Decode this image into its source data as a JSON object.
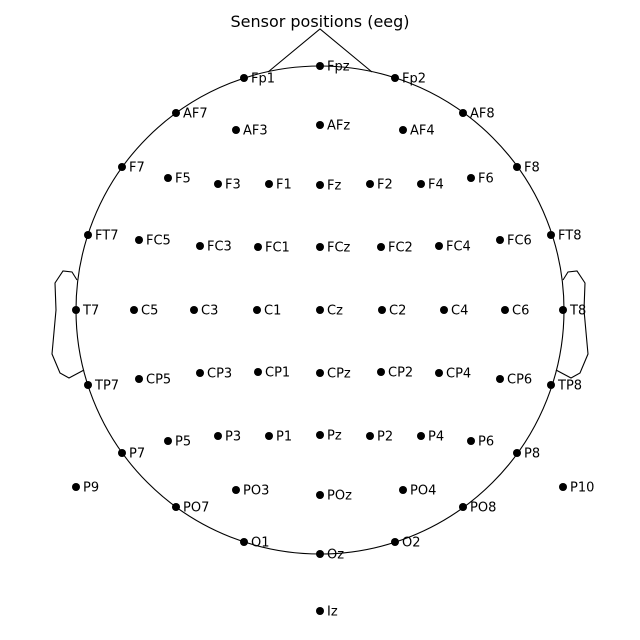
{
  "title": "Sensor positions (eeg)",
  "colors": {
    "sensor": "#000000",
    "outline": "#000000",
    "background": "#ffffff"
  },
  "sensors": [
    {
      "name": "Fp1"
    },
    {
      "name": "Fpz"
    },
    {
      "name": "Fp2"
    },
    {
      "name": "AF7"
    },
    {
      "name": "AF3"
    },
    {
      "name": "AFz"
    },
    {
      "name": "AF4"
    },
    {
      "name": "AF8"
    },
    {
      "name": "F7"
    },
    {
      "name": "F5"
    },
    {
      "name": "F3"
    },
    {
      "name": "F1"
    },
    {
      "name": "Fz"
    },
    {
      "name": "F2"
    },
    {
      "name": "F4"
    },
    {
      "name": "F6"
    },
    {
      "name": "F8"
    },
    {
      "name": "FT7"
    },
    {
      "name": "FC5"
    },
    {
      "name": "FC3"
    },
    {
      "name": "FC1"
    },
    {
      "name": "FCz"
    },
    {
      "name": "FC2"
    },
    {
      "name": "FC4"
    },
    {
      "name": "FC6"
    },
    {
      "name": "FT8"
    },
    {
      "name": "T7"
    },
    {
      "name": "C5"
    },
    {
      "name": "C3"
    },
    {
      "name": "C1"
    },
    {
      "name": "Cz"
    },
    {
      "name": "C2"
    },
    {
      "name": "C4"
    },
    {
      "name": "C6"
    },
    {
      "name": "T8"
    },
    {
      "name": "TP7"
    },
    {
      "name": "CP5"
    },
    {
      "name": "CP3"
    },
    {
      "name": "CP1"
    },
    {
      "name": "CPz"
    },
    {
      "name": "CP2"
    },
    {
      "name": "CP4"
    },
    {
      "name": "CP6"
    },
    {
      "name": "TP8"
    },
    {
      "name": "P7"
    },
    {
      "name": "P5"
    },
    {
      "name": "P3"
    },
    {
      "name": "P1"
    },
    {
      "name": "Pz"
    },
    {
      "name": "P2"
    },
    {
      "name": "P4"
    },
    {
      "name": "P6"
    },
    {
      "name": "P8"
    },
    {
      "name": "P9"
    },
    {
      "name": "PO7"
    },
    {
      "name": "PO3"
    },
    {
      "name": "POz"
    },
    {
      "name": "PO4"
    },
    {
      "name": "PO8"
    },
    {
      "name": "P10"
    },
    {
      "name": "O1"
    },
    {
      "name": "Oz"
    },
    {
      "name": "O2"
    },
    {
      "name": "Iz"
    }
  ]
}
